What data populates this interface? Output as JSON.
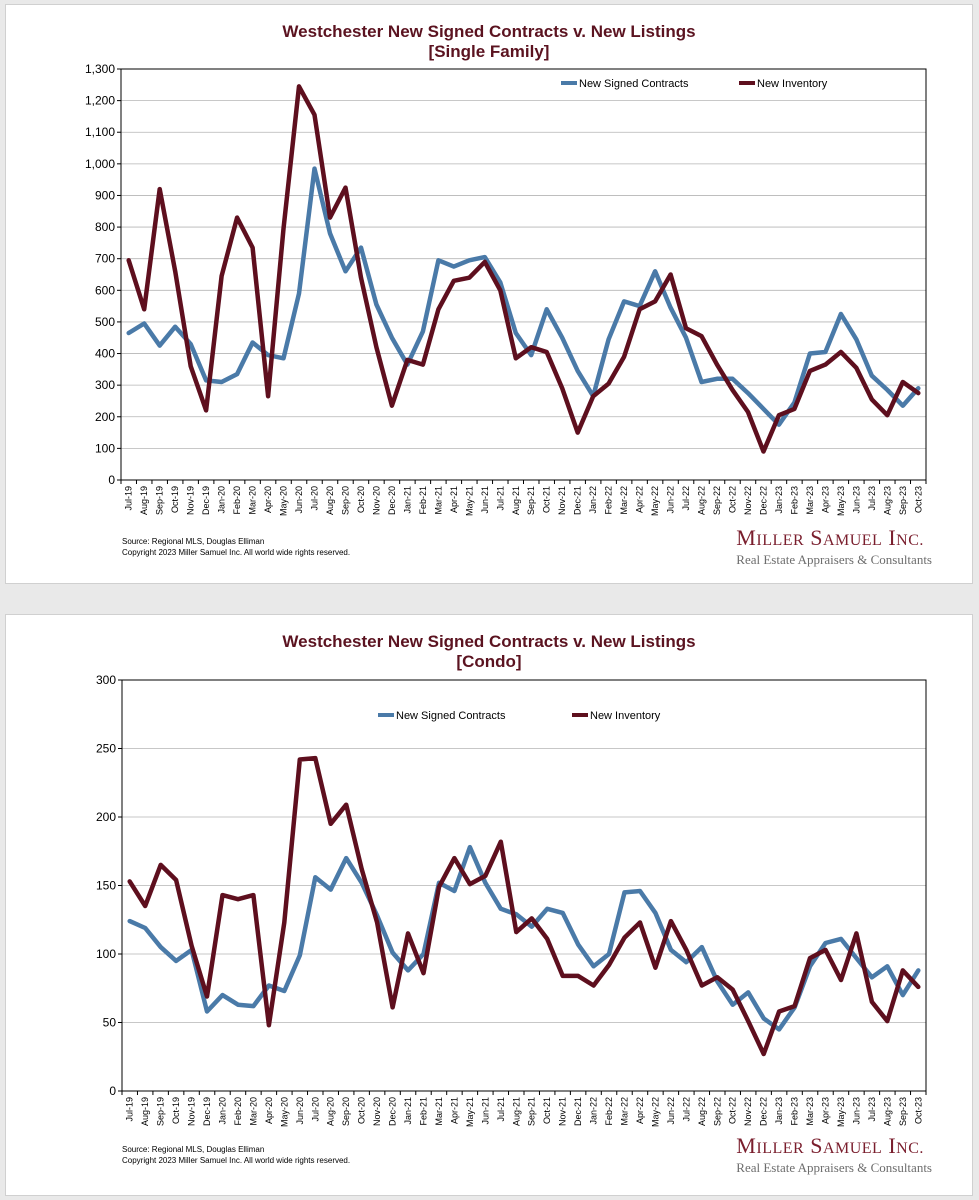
{
  "brand": {
    "name_first": "M",
    "name_first_rest": "ILLER",
    "name_second": "S",
    "name_second_rest": "AMUEL",
    "name_third": "I",
    "name_third_rest": "NC.",
    "tagline": "Real Estate Appraisers & Consultants"
  },
  "footer": {
    "source": "Source: Regional MLS, Douglas Elliman",
    "copyright": "Copyright 2023 Miller Samuel Inc.  All world wide rights reserved."
  },
  "colors": {
    "contracts": "#4a7aa8",
    "inventory": "#5e0f1e",
    "title": "#5b1320",
    "grid": "#b5b5b5"
  },
  "chart_data": [
    {
      "type": "line",
      "title": "Westchester New Signed Contracts v. New Listings",
      "subtitle": "[Single Family]",
      "ylim": [
        0,
        1300
      ],
      "yticks": [
        0,
        100,
        200,
        300,
        400,
        500,
        600,
        700,
        800,
        900,
        1000,
        1100,
        1200,
        1300
      ],
      "ytick_labels": [
        "0",
        "100",
        "200",
        "300",
        "400",
        "500",
        "600",
        "700",
        "800",
        "900",
        "1,000",
        "1,100",
        "1,200",
        "1,300"
      ],
      "grid": true,
      "legend_position": "top-right",
      "categories": [
        "Jul-19",
        "Aug-19",
        "Sep-19",
        "Oct-19",
        "Nov-19",
        "Dec-19",
        "Jan-20",
        "Feb-20",
        "Mar-20",
        "Apr-20",
        "May-20",
        "Jun-20",
        "Jul-20",
        "Aug-20",
        "Sep-20",
        "Oct-20",
        "Nov-20",
        "Dec-20",
        "Jan-21",
        "Feb-21",
        "Mar-21",
        "Apr-21",
        "May-21",
        "Jun-21",
        "Jul-21",
        "Aug-21",
        "Sep-21",
        "Oct-21",
        "Nov-21",
        "Dec-21",
        "Jan-22",
        "Feb-22",
        "Mar-22",
        "Apr-22",
        "May-22",
        "Jun-22",
        "Jul-22",
        "Aug-22",
        "Sep-22",
        "Oct-22",
        "Nov-22",
        "Dec-22",
        "Jan-23",
        "Feb-23",
        "Mar-23",
        "Apr-23",
        "May-23",
        "Jun-23",
        "Jul-23",
        "Aug-23",
        "Sep-23",
        "Oct-23"
      ],
      "series": [
        {
          "name": "New Signed Contracts",
          "color": "#4a7aa8",
          "values": [
            465,
            495,
            425,
            485,
            430,
            315,
            310,
            335,
            435,
            395,
            385,
            590,
            985,
            780,
            660,
            735,
            555,
            450,
            365,
            470,
            695,
            675,
            695,
            705,
            625,
            465,
            395,
            540,
            450,
            345,
            265,
            445,
            565,
            550,
            660,
            545,
            450,
            310,
            320,
            320,
            275,
            225,
            175,
            245,
            400,
            405,
            525,
            445,
            330,
            285,
            235,
            290
          ]
        },
        {
          "name": "New Inventory",
          "color": "#5e0f1e",
          "values": [
            695,
            540,
            920,
            660,
            360,
            220,
            645,
            830,
            735,
            265,
            795,
            1245,
            1155,
            830,
            925,
            640,
            420,
            235,
            380,
            365,
            540,
            630,
            640,
            690,
            600,
            385,
            420,
            405,
            290,
            150,
            265,
            305,
            390,
            540,
            565,
            650,
            480,
            455,
            365,
            285,
            215,
            90,
            205,
            225,
            345,
            365,
            405,
            355,
            255,
            205,
            310,
            275
          ]
        }
      ]
    },
    {
      "type": "line",
      "title": "Westchester New Signed Contracts v. New Listings",
      "subtitle": "[Condo]",
      "ylim": [
        0,
        300
      ],
      "yticks": [
        0,
        50,
        100,
        150,
        200,
        250,
        300
      ],
      "ytick_labels": [
        "0",
        "50",
        "100",
        "150",
        "200",
        "250",
        "300"
      ],
      "grid": true,
      "legend_position": "top-center",
      "categories": [
        "Jul-19",
        "Aug-19",
        "Sep-19",
        "Oct-19",
        "Nov-19",
        "Dec-19",
        "Jan-20",
        "Feb-20",
        "Mar-20",
        "Apr-20",
        "May-20",
        "Jun-20",
        "Jul-20",
        "Aug-20",
        "Sep-20",
        "Oct-20",
        "Nov-20",
        "Dec-20",
        "Jan-21",
        "Feb-21",
        "Mar-21",
        "Apr-21",
        "May-21",
        "Jun-21",
        "Jul-21",
        "Aug-21",
        "Sep-21",
        "Oct-21",
        "Nov-21",
        "Dec-21",
        "Jan-22",
        "Feb-22",
        "Mar-22",
        "Apr-22",
        "May-22",
        "Jun-22",
        "Jul-22",
        "Aug-22",
        "Sep-22",
        "Oct-22",
        "Nov-22",
        "Dec-22",
        "Jan-23",
        "Feb-23",
        "Mar-23",
        "Apr-23",
        "May-23",
        "Jun-23",
        "Jul-23",
        "Aug-23",
        "Sep-23",
        "Oct-23"
      ],
      "series": [
        {
          "name": "New Signed Contracts",
          "color": "#4a7aa8",
          "values": [
            124,
            119,
            105,
            95,
            103,
            58,
            70,
            63,
            62,
            77,
            73,
            99,
            156,
            147,
            170,
            152,
            128,
            101,
            88,
            100,
            152,
            146,
            178,
            152,
            133,
            129,
            120,
            133,
            130,
            107,
            91,
            100,
            145,
            146,
            130,
            103,
            94,
            105,
            80,
            63,
            72,
            53,
            45,
            61,
            91,
            108,
            111,
            97,
            83,
            91,
            70,
            88
          ]
        },
        {
          "name": "New Inventory",
          "color": "#5e0f1e",
          "values": [
            153,
            135,
            165,
            154,
            106,
            69,
            143,
            140,
            143,
            48,
            123,
            242,
            243,
            195,
            209,
            162,
            123,
            61,
            115,
            86,
            149,
            170,
            151,
            157,
            182,
            116,
            126,
            111,
            84,
            84,
            77,
            92,
            112,
            123,
            90,
            124,
            103,
            77,
            83,
            74,
            51,
            27,
            58,
            62,
            97,
            103,
            81,
            115,
            65,
            51,
            88,
            76
          ]
        }
      ]
    }
  ]
}
